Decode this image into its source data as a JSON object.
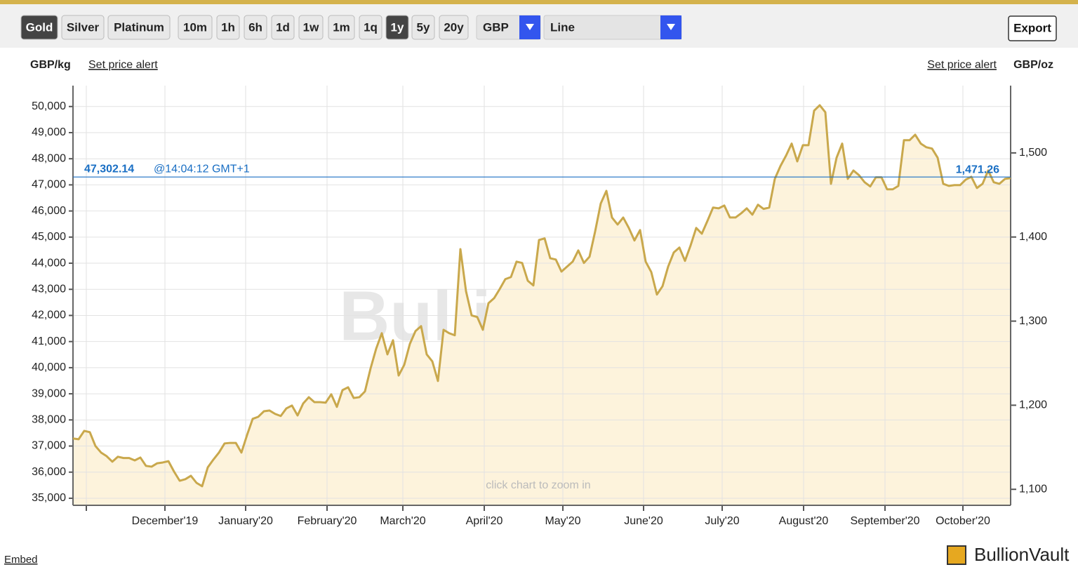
{
  "toolbar": {
    "metals": [
      {
        "label": "Gold",
        "active": true
      },
      {
        "label": "Silver",
        "active": false
      },
      {
        "label": "Platinum",
        "active": false
      }
    ],
    "periods": [
      {
        "label": "10m",
        "active": false
      },
      {
        "label": "1h",
        "active": false
      },
      {
        "label": "6h",
        "active": false
      },
      {
        "label": "1d",
        "active": false
      },
      {
        "label": "1w",
        "active": false
      },
      {
        "label": "1m",
        "active": false
      },
      {
        "label": "1q",
        "active": false
      },
      {
        "label": "1y",
        "active": true
      },
      {
        "label": "5y",
        "active": false
      },
      {
        "label": "20y",
        "active": false
      }
    ],
    "currency": "GBP",
    "chart_style": "Line",
    "export": "Export"
  },
  "left_alert": "Set price alert",
  "right_alert": "Set price alert",
  "watermark": "BullionVault",
  "hint": "click chart to zoom in",
  "embed": "Embed",
  "logo": "BullionVault",
  "chart_data": {
    "type": "line",
    "y_label": "GBP/kg",
    "y2_label": "GBP/oz",
    "xlim": [
      0,
      167
    ],
    "xticks": [
      {
        "value": 2.375,
        "label": null
      },
      {
        "value": 16.375,
        "label": "December'19"
      },
      {
        "value": 30.75,
        "label": "January'20"
      },
      {
        "value": 45.25,
        "label": "February'20"
      },
      {
        "value": 58.75,
        "label": "March'20"
      },
      {
        "value": 73.25,
        "label": "April'20"
      },
      {
        "value": 87.25,
        "label": "May'20"
      },
      {
        "value": 101.625,
        "label": "June'20"
      },
      {
        "value": 115.625,
        "label": "July'20"
      },
      {
        "value": 130.125,
        "label": "August'20"
      },
      {
        "value": 144.625,
        "label": "September'20"
      },
      {
        "value": 158.5,
        "label": "October'20"
      }
    ],
    "ylim": [
      34730,
      50800
    ],
    "yticks": [
      {
        "value": 35000,
        "label": "35,000"
      },
      {
        "value": 36000,
        "label": "36,000"
      },
      {
        "value": 37000,
        "label": "37,000"
      },
      {
        "value": 38000,
        "label": "38,000"
      },
      {
        "value": 39000,
        "label": "39,000"
      },
      {
        "value": 40000,
        "label": "40,000"
      },
      {
        "value": 41000,
        "label": "41,000"
      },
      {
        "value": 42000,
        "label": "42,000"
      },
      {
        "value": 43000,
        "label": "43,000"
      },
      {
        "value": 44000,
        "label": "44,000"
      },
      {
        "value": 45000,
        "label": "45,000"
      },
      {
        "value": 46000,
        "label": "46,000"
      },
      {
        "value": 47000,
        "label": "47,000"
      },
      {
        "value": 48000,
        "label": "48,000"
      },
      {
        "value": 49000,
        "label": "49,000"
      },
      {
        "value": 50000,
        "label": "50,000"
      }
    ],
    "y2lim": [
      1081,
      1580
    ],
    "y2ticks": [
      {
        "value": 1100,
        "label": "1,100"
      },
      {
        "value": 1200,
        "label": "1,200"
      },
      {
        "value": 1300,
        "label": "1,300"
      },
      {
        "value": 1400,
        "label": "1,400"
      },
      {
        "value": 1500,
        "label": "1,500"
      }
    ],
    "grid": true,
    "current": {
      "value": 47302.14,
      "label": "47,302.14",
      "time": "@14:04:12 GMT+1",
      "value2": 1471.26,
      "label2": "1,471.26",
      "color": "#1a6fc4"
    },
    "series": [
      {
        "name": "Gold",
        "color": "#c9a84c",
        "fill": "#fdf3dc",
        "values": [
          37290,
          37260,
          37580,
          37530,
          37000,
          36750,
          36610,
          36400,
          36590,
          36540,
          36540,
          36450,
          36560,
          36240,
          36210,
          36340,
          36370,
          36420,
          36020,
          35670,
          35730,
          35860,
          35590,
          35460,
          36180,
          36480,
          36750,
          37100,
          37120,
          37120,
          36750,
          37420,
          38040,
          38120,
          38330,
          38360,
          38230,
          38150,
          38440,
          38550,
          38170,
          38630,
          38870,
          38680,
          38680,
          38660,
          38980,
          38500,
          39140,
          39250,
          38840,
          38870,
          39090,
          39970,
          40730,
          41320,
          40510,
          41050,
          39700,
          40110,
          40910,
          41400,
          41590,
          40510,
          40240,
          39490,
          41450,
          41320,
          41240,
          44540,
          42930,
          42000,
          41940,
          41450,
          42470,
          42660,
          43010,
          43390,
          43470,
          44060,
          44010,
          43330,
          43150,
          44890,
          44950,
          44190,
          44140,
          43680,
          43870,
          44060,
          44490,
          44010,
          44250,
          45220,
          46290,
          46770,
          45750,
          45480,
          45750,
          45350,
          44870,
          45270,
          44060,
          43660,
          42800,
          43120,
          43870,
          44410,
          44600,
          44090,
          44680,
          45350,
          45130,
          45620,
          46130,
          46100,
          46210,
          45750,
          45750,
          45910,
          46100,
          45860,
          46240,
          46080,
          46130,
          47230,
          47720,
          48120,
          48580,
          47900,
          48520,
          48520,
          49840,
          50050,
          49780,
          47040,
          48040,
          48580,
          47230,
          47550,
          47370,
          47100,
          46940,
          47290,
          47290,
          46830,
          46830,
          46960,
          48710,
          48710,
          48920,
          48580,
          48440,
          48390,
          48040,
          47040,
          46960,
          46990,
          46990,
          47200,
          47310,
          46880,
          47040,
          47550,
          47100,
          47040,
          47230,
          47260
        ]
      }
    ]
  }
}
